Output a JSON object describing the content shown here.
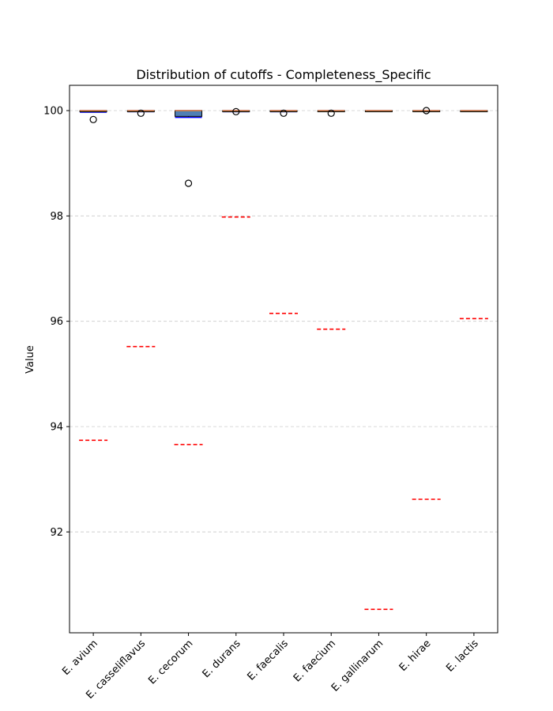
{
  "chart_data": {
    "type": "box",
    "title": "Distribution of cutoffs - Completeness_Specific",
    "xlabel": "",
    "ylabel": "Value",
    "ylim": [
      90.0,
      100.5
    ],
    "yticks": [
      92,
      94,
      96,
      98,
      100
    ],
    "grid": "y-dashed",
    "categories": [
      "E. avium",
      "E. casseliflavus",
      "E. cecorum",
      "E. durans",
      "E. faecalis",
      "E. faecium",
      "E. gallinarum",
      "E. hirae",
      "E. lactis"
    ],
    "boxes": [
      {
        "q1": 99.98,
        "median": 100.0,
        "q3": 100.0,
        "whisker_low": 99.97,
        "whisker_high": 100.0,
        "outliers": [
          99.83
        ],
        "cutoff": 93.74
      },
      {
        "q1": 99.99,
        "median": 100.0,
        "q3": 100.0,
        "whisker_low": 99.98,
        "whisker_high": 100.0,
        "outliers": [
          99.95
        ],
        "cutoff": 95.52
      },
      {
        "q1": 99.89,
        "median": 100.0,
        "q3": 100.0,
        "whisker_low": 99.87,
        "whisker_high": 100.0,
        "outliers": [
          98.62
        ],
        "cutoff": 93.66
      },
      {
        "q1": 99.99,
        "median": 100.0,
        "q3": 100.0,
        "whisker_low": 99.98,
        "whisker_high": 100.0,
        "outliers": [
          99.98
        ],
        "cutoff": 97.98
      },
      {
        "q1": 99.99,
        "median": 100.0,
        "q3": 100.0,
        "whisker_low": 99.98,
        "whisker_high": 100.0,
        "outliers": [
          99.95
        ],
        "cutoff": 96.15
      },
      {
        "q1": 99.99,
        "median": 100.0,
        "q3": 100.0,
        "whisker_low": 99.99,
        "whisker_high": 100.0,
        "outliers": [
          99.95
        ],
        "cutoff": 95.85
      },
      {
        "q1": 99.99,
        "median": 100.0,
        "q3": 100.0,
        "whisker_low": 99.99,
        "whisker_high": 100.0,
        "outliers": [],
        "cutoff": 90.53
      },
      {
        "q1": 99.99,
        "median": 100.0,
        "q3": 100.0,
        "whisker_low": 99.99,
        "whisker_high": 100.0,
        "outliers": [
          100.0
        ],
        "cutoff": 92.62
      },
      {
        "q1": 99.99,
        "median": 100.0,
        "q3": 100.0,
        "whisker_low": 99.99,
        "whisker_high": 100.0,
        "outliers": [],
        "cutoff": 96.05
      }
    ],
    "colors": {
      "box_face": "#4f7fb5",
      "box_edge": "#000000",
      "whisker": "#0000ff",
      "median": "#ff7f0e",
      "cutoff_line": "#ff0000",
      "grid": "#cccccc",
      "outlier": "#000000"
    }
  }
}
